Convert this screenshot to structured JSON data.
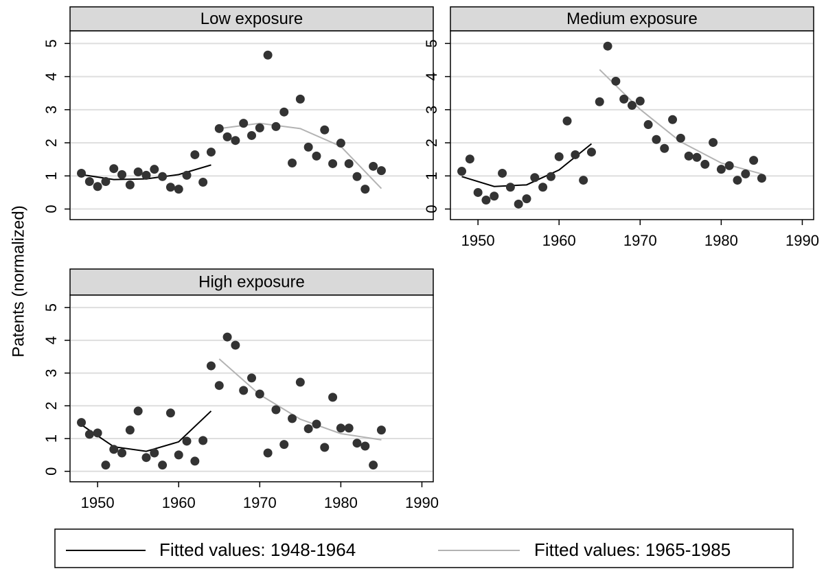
{
  "chart_data": [
    {
      "type": "scatter",
      "title": "Low exposure",
      "y_label": "Patents (normalized)",
      "color": "#333333",
      "x_axis": false,
      "grid": true,
      "x": [
        1948,
        1949,
        1950,
        1951,
        1952,
        1953,
        1954,
        1955,
        1956,
        1957,
        1958,
        1959,
        1960,
        1961,
        1962,
        1963,
        1964,
        1965,
        1966,
        1967,
        1968,
        1969,
        1970,
        1971,
        1972,
        1973,
        1974,
        1975,
        1976,
        1977,
        1978,
        1979,
        1980,
        1981,
        1982,
        1983,
        1984,
        1985
      ],
      "values": [
        1.08,
        0.83,
        0.68,
        0.83,
        1.22,
        1.04,
        0.73,
        1.12,
        1.02,
        1.2,
        0.98,
        0.66,
        0.6,
        1.02,
        1.64,
        0.81,
        1.72,
        2.43,
        2.18,
        2.07,
        2.59,
        2.22,
        2.45,
        4.65,
        2.49,
        2.93,
        1.39,
        3.32,
        1.87,
        1.6,
        2.39,
        1.37,
        1.99,
        1.37,
        0.98,
        0.6,
        1.29,
        1.16
      ],
      "series": [
        {
          "name": "Fitted values: 1948-1964",
          "color": "#000000",
          "x": [
            1948,
            1952,
            1956,
            1960,
            1964
          ],
          "values": [
            1.04,
            0.89,
            0.91,
            1.04,
            1.33
          ]
        },
        {
          "name": "Fitted values: 1965-1985",
          "color": "#b3b3b3",
          "x": [
            1965,
            1970,
            1975,
            1980,
            1985
          ],
          "values": [
            2.43,
            2.59,
            2.43,
            1.89,
            0.62
          ]
        }
      ],
      "xlim": [
        1946.6,
        1991.4
      ],
      "ylim": [
        -0.32,
        5.38
      ],
      "xticks": [
        1950,
        1960,
        1970,
        1980,
        1990
      ],
      "yticks": [
        0,
        1,
        2,
        3,
        4,
        5
      ]
    },
    {
      "type": "scatter",
      "title": "Medium exposure",
      "color": "#333333",
      "x_axis": true,
      "grid": true,
      "x": [
        1948,
        1949,
        1950,
        1951,
        1952,
        1953,
        1954,
        1955,
        1956,
        1957,
        1958,
        1959,
        1960,
        1961,
        1962,
        1963,
        1964,
        1965,
        1966,
        1967,
        1968,
        1969,
        1970,
        1971,
        1972,
        1973,
        1974,
        1975,
        1976,
        1977,
        1978,
        1979,
        1980,
        1981,
        1982,
        1983,
        1984,
        1985
      ],
      "values": [
        1.14,
        1.51,
        0.5,
        0.27,
        0.39,
        1.08,
        0.66,
        0.15,
        0.31,
        0.95,
        0.66,
        0.98,
        1.58,
        2.66,
        1.64,
        0.87,
        1.72,
        3.24,
        4.92,
        3.86,
        3.32,
        3.13,
        3.26,
        2.55,
        2.1,
        1.83,
        2.7,
        2.14,
        1.6,
        1.56,
        1.35,
        2.01,
        1.2,
        1.31,
        0.87,
        1.06,
        1.47,
        0.93
      ],
      "series": [
        {
          "color": "#000000",
          "x": [
            1948,
            1952,
            1956,
            1960,
            1964
          ],
          "values": [
            0.98,
            0.68,
            0.73,
            1.18,
            1.97
          ]
        },
        {
          "color": "#b3b3b3",
          "x": [
            1965,
            1970,
            1975,
            1980,
            1985
          ],
          "values": [
            4.21,
            3.01,
            2.03,
            1.39,
            1.06
          ]
        }
      ],
      "xlim": [
        1946.6,
        1991.4
      ],
      "ylim": [
        -0.32,
        5.38
      ],
      "xticks": [
        1950,
        1960,
        1970,
        1980,
        1990
      ],
      "yticks": [
        0,
        1,
        2,
        3,
        4,
        5
      ]
    },
    {
      "type": "scatter",
      "title": "High exposure",
      "color": "#333333",
      "x_axis": true,
      "grid": true,
      "x": [
        1948,
        1949,
        1950,
        1951,
        1952,
        1953,
        1954,
        1955,
        1956,
        1957,
        1958,
        1959,
        1960,
        1961,
        1962,
        1963,
        1964,
        1965,
        1966,
        1967,
        1968,
        1969,
        1970,
        1971,
        1972,
        1973,
        1974,
        1975,
        1976,
        1977,
        1978,
        1979,
        1980,
        1981,
        1982,
        1983,
        1984,
        1985
      ],
      "values": [
        1.49,
        1.13,
        1.17,
        0.19,
        0.67,
        0.56,
        1.26,
        1.84,
        0.42,
        0.56,
        0.19,
        1.78,
        0.5,
        0.92,
        0.31,
        0.94,
        3.22,
        2.62,
        4.1,
        3.85,
        2.47,
        2.85,
        2.36,
        0.56,
        1.88,
        0.82,
        1.61,
        2.72,
        1.3,
        1.44,
        0.73,
        2.26,
        1.32,
        1.32,
        0.86,
        0.77,
        0.19,
        1.26
      ],
      "series": [
        {
          "color": "#000000",
          "x": [
            1948,
            1952,
            1956,
            1960,
            1964
          ],
          "values": [
            1.42,
            0.75,
            0.61,
            0.9,
            1.84
          ]
        },
        {
          "color": "#b3b3b3",
          "x": [
            1965,
            1970,
            1975,
            1980,
            1985
          ],
          "values": [
            3.43,
            2.34,
            1.59,
            1.15,
            0.96
          ]
        }
      ],
      "xlim": [
        1946.6,
        1991.4
      ],
      "ylim": [
        -0.32,
        5.38
      ],
      "xticks": [
        1950,
        1960,
        1970,
        1980,
        1990
      ],
      "yticks": [
        0,
        1,
        2,
        3,
        4,
        5
      ]
    }
  ]
}
